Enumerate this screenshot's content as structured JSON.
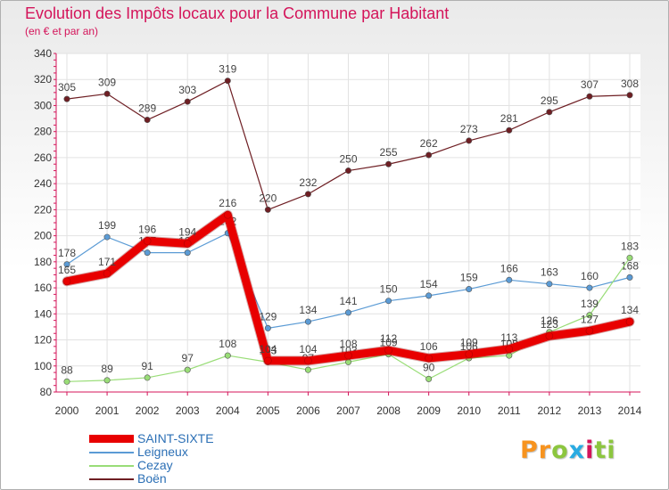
{
  "title": "Evolution des Impôts locaux pour la Commune par Habitant",
  "subtitle": "(en € et par an)",
  "logo": {
    "letters": [
      "P",
      "r",
      "o",
      "x",
      "i",
      "t",
      "i"
    ],
    "colors": [
      "#f7931e",
      "#f7931e",
      "#8cc63f",
      "#29abe2",
      "#d4145a",
      "#8cc63f",
      "#8cc63f"
    ]
  },
  "chart_data": {
    "type": "line",
    "title": "Evolution des Impôts locaux pour la Commune par Habitant",
    "xlabel": "",
    "ylabel": "(en € et par an)",
    "x": [
      "2000",
      "2001",
      "2002",
      "2003",
      "2004",
      "2005",
      "2006",
      "2007",
      "2008",
      "2009",
      "2010",
      "2011",
      "2012",
      "2013",
      "2014"
    ],
    "ylim": [
      80,
      340
    ],
    "yticks": [
      "80",
      "100",
      "120",
      "140",
      "160",
      "180",
      "200",
      "220",
      "240",
      "260",
      "280",
      "300",
      "320",
      "340"
    ],
    "grid": true,
    "legend_position": "bottom-left",
    "series": [
      {
        "name": "Boën",
        "color": "#6e1e23",
        "width": 1.2,
        "values": [
          305,
          309,
          289,
          303,
          319,
          220,
          232,
          250,
          255,
          262,
          273,
          281,
          295,
          307,
          308
        ],
        "labels": [
          "305",
          "309",
          "289",
          "303",
          "319",
          "220",
          "232",
          "250",
          "255",
          "262",
          "273",
          "281",
          "295",
          "307",
          "308"
        ]
      },
      {
        "name": "Leigneux",
        "color": "#5b9bd5",
        "width": 1.2,
        "values": [
          178,
          199,
          187,
          187,
          202,
          129,
          134,
          141,
          150,
          154,
          159,
          166,
          163,
          160,
          168
        ],
        "labels": [
          "178",
          "199",
          "187",
          "187",
          "202",
          "129",
          "134",
          "141",
          "150",
          "154",
          "159",
          "166",
          "163",
          "160",
          "168"
        ]
      },
      {
        "name": "Cezay",
        "color": "#99dd77",
        "width": 1.2,
        "values": [
          88,
          89,
          91,
          97,
          108,
          103,
          97,
          103,
          109,
          90,
          106,
          108,
          126,
          139,
          183
        ],
        "labels": [
          "88",
          "89",
          "91",
          "97",
          "108",
          "103",
          "97",
          "103",
          "109",
          "90",
          "106",
          "108",
          "126",
          "139",
          "183"
        ]
      },
      {
        "name": "SAINT-SIXTE",
        "color": "#e80000",
        "width": 9,
        "values": [
          165,
          171,
          196,
          194,
          216,
          104,
          104,
          108,
          112,
          106,
          109,
          113,
          123,
          127,
          134
        ],
        "labels": [
          "165",
          "171",
          "196",
          "194",
          "216",
          "104",
          "104",
          "108",
          "112",
          "106",
          "109",
          "113",
          "123",
          "127",
          "134"
        ]
      }
    ],
    "legend": [
      {
        "name": "SAINT-SIXTE",
        "color": "#e80000"
      },
      {
        "name": "Leigneux",
        "color": "#5b9bd5"
      },
      {
        "name": "Cezay",
        "color": "#99dd77"
      },
      {
        "name": "Boën",
        "color": "#6e1e23"
      }
    ]
  }
}
